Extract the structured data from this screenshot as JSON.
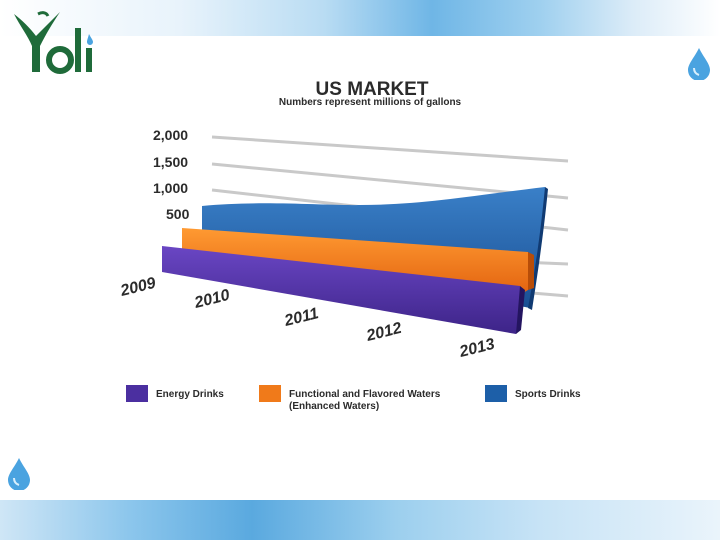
{
  "brand": {
    "logo_text": "Yoli",
    "accent": "#1f6b3a",
    "drop_color": "#4aa3e0"
  },
  "colors": {
    "energy": "#4b2fa0",
    "functional": "#f07a1a",
    "sports": "#1d5fa8"
  },
  "chart_data": {
    "type": "area",
    "title": "US MARKET",
    "subtitle": "Numbers represent millions of gallons",
    "y_ticks": [
      "2,000",
      "1,500",
      "1,000",
      "500"
    ],
    "categories": [
      "2009",
      "2010",
      "2011",
      "2012",
      "2013"
    ],
    "ylim": [
      0,
      2000
    ],
    "series": [
      {
        "name": "Energy Drinks",
        "values": [
          330,
          330,
          330,
          330,
          330
        ]
      },
      {
        "name": "Functional and Flavored Waters (Enhanced Waters)",
        "values": [
          430,
          430,
          430,
          430,
          430
        ]
      },
      {
        "name": "Sports Drinks",
        "values": [
          900,
          920,
          930,
          950,
          1000
        ]
      }
    ],
    "legend": [
      {
        "label": "Energy Drinks",
        "color": "#4b2fa0"
      },
      {
        "label_line1": "Functional and Flavored Waters",
        "label_line2": "(Enhanced Waters)",
        "color": "#f07a1a"
      },
      {
        "label": "Sports Drinks",
        "color": "#1d5fa8"
      }
    ],
    "legend_position": "bottom",
    "grid": true
  }
}
